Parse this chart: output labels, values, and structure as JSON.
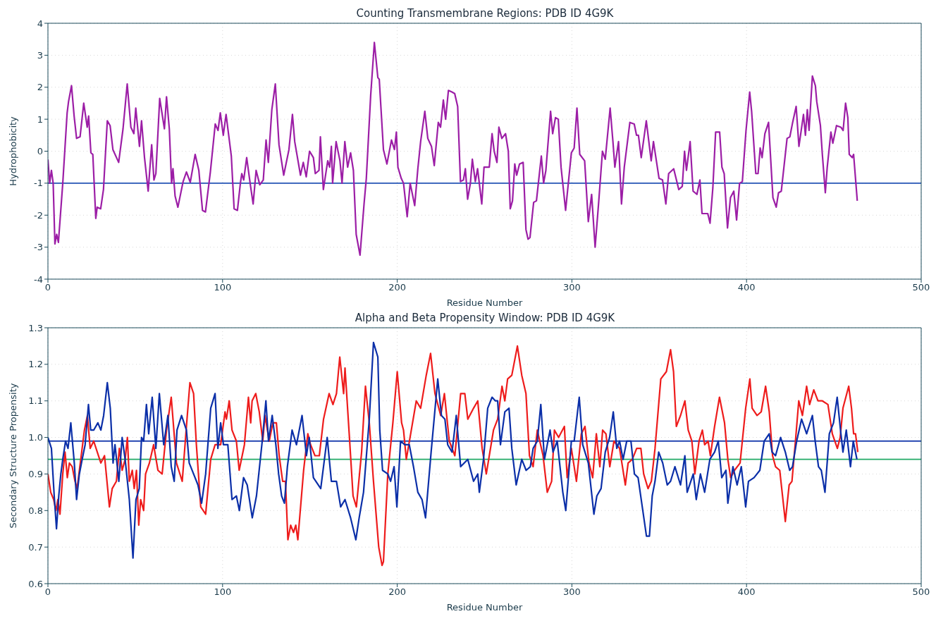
{
  "chart_data": [
    {
      "type": "line",
      "title": "Counting Transmembrane Regions: PDB ID 4G9K",
      "xlabel": "Residue Number",
      "ylabel": "Hydrophobicity",
      "xlim": [
        0,
        500
      ],
      "xticks": [
        0,
        100,
        200,
        300,
        400,
        500
      ],
      "ylim": [
        -4,
        4
      ],
      "yticks": [
        -4,
        -3,
        -2,
        -1,
        0,
        1,
        2,
        3,
        4
      ],
      "grid": true,
      "ref_lines": [
        {
          "axis": "y",
          "value": -1,
          "color": "#2455b5"
        }
      ],
      "series": [
        {
          "color": "#9c1ea6",
          "x": [
            0,
            1,
            2,
            3,
            4,
            5,
            6,
            8.5,
            11,
            11.8,
            13.5,
            15,
            16.4,
            18.4,
            20.5,
            22.5,
            23.3,
            24.6,
            25.7,
            27.4,
            28.2,
            30.2,
            31.8,
            34,
            35.6,
            37.2,
            40.5,
            43,
            45.4,
            47.5,
            49.2,
            50.3,
            52.4,
            53.6,
            55.3,
            57.4,
            59.4,
            60.7,
            61.8,
            64,
            66.7,
            67.9,
            69.5,
            70.8,
            71.6,
            72.8,
            74.4,
            77.4,
            79.3,
            81.5,
            84.3,
            86.4,
            88.5,
            90.2,
            93,
            95.8,
            97.4,
            98.7,
            100.4,
            102,
            105,
            106.6,
            108.5,
            110.2,
            111,
            112.1,
            113.8,
            115.9,
            117.5,
            119.2,
            121.3,
            123.3,
            124.9,
            126.2,
            128.2,
            130.2,
            132.3,
            135,
            138,
            140,
            141.3,
            144.6,
            146.2,
            147.9,
            149.8,
            152,
            153.1,
            155.2,
            156,
            157.7,
            160.2,
            161.3,
            162.3,
            163,
            165,
            167.2,
            168.4,
            170,
            171.6,
            173.3,
            174.9,
            176.5,
            178.7,
            181,
            182.3,
            184.8,
            186.9,
            188.9,
            189.7,
            192.1,
            194.1,
            196.7,
            198.4,
            199.5,
            200.4,
            202.3,
            203.6,
            205.7,
            207.4,
            210,
            211.8,
            213.4,
            215.8,
            217.5,
            219.6,
            221.2,
            223.5,
            224.8,
            226.4,
            227.7,
            229.3,
            231.3,
            232.9,
            234.6,
            236.2,
            237.9,
            239,
            240.3,
            241.9,
            243,
            244.7,
            246,
            248.4,
            249.7,
            252.7,
            254.3,
            255.5,
            257.1,
            258.2,
            259.9,
            262,
            263.6,
            264.7,
            266,
            267.3,
            268.4,
            270,
            272.1,
            273.7,
            274.9,
            276,
            278.1,
            279.7,
            282.5,
            283.8,
            285.1,
            287.8,
            289,
            290.6,
            292.2,
            293.8,
            296.4,
            299.7,
            301.3,
            302.9,
            304.5,
            307.3,
            309.4,
            311.3,
            313.3,
            315.4,
            317.5,
            319.1,
            321.9,
            323.5,
            324.6,
            326.7,
            328.4,
            330,
            333.2,
            335.7,
            337,
            338.1,
            339.7,
            342.6,
            345.4,
            346.7,
            349.9,
            351.9,
            353.8,
            355.4,
            358.3,
            361.2,
            363.2,
            364.5,
            365.6,
            367.7,
            369.4,
            371.6,
            373.3,
            374.5,
            377.8,
            379.1,
            380.7,
            382.3,
            384.6,
            385.9,
            387.2,
            389.1,
            390.8,
            392.7,
            394.3,
            396,
            397.6,
            399.7,
            401.8,
            402.9,
            405.3,
            406.6,
            407.8,
            408.9,
            410.5,
            412.6,
            415.1,
            417,
            418.3,
            419.9,
            423.2,
            424.8,
            426.4,
            428.4,
            430,
            432.6,
            433.7,
            434.8,
            435.8,
            437.7,
            439.4,
            440.2,
            442.3,
            443.4,
            445.1,
            446.2,
            448.3,
            449.4,
            451.5,
            454,
            455.3,
            456.7,
            458,
            458.8,
            460.5,
            461.3,
            463.4
          ],
          "values": [
            -0.26,
            -1.0,
            -0.6,
            -1.0,
            -2.9,
            -2.6,
            -2.85,
            -1.0,
            1.2,
            1.55,
            2.05,
            1.1,
            0.4,
            0.45,
            1.5,
            0.75,
            1.1,
            -0.05,
            -0.1,
            -2.1,
            -1.75,
            -1.8,
            -1.2,
            0.95,
            0.8,
            0.05,
            -0.35,
            0.7,
            2.1,
            0.75,
            0.55,
            1.35,
            0.15,
            0.95,
            -0.2,
            -1.25,
            0.2,
            -0.9,
            -0.7,
            1.65,
            0.7,
            1.7,
            0.7,
            -1.0,
            -0.55,
            -1.4,
            -1.75,
            -0.95,
            -0.65,
            -0.97,
            -0.1,
            -0.6,
            -1.85,
            -1.9,
            -0.65,
            0.85,
            0.65,
            1.2,
            0.5,
            1.15,
            -0.15,
            -1.8,
            -1.85,
            -1.0,
            -0.7,
            -0.9,
            -0.2,
            -1.05,
            -1.65,
            -0.6,
            -1.05,
            -0.9,
            0.35,
            -0.35,
            1.3,
            2.1,
            0.2,
            -0.75,
            0.05,
            1.15,
            0.3,
            -0.75,
            -0.35,
            -0.8,
            0.0,
            -0.2,
            -0.7,
            -0.6,
            0.45,
            -1.2,
            -0.3,
            -0.5,
            0.15,
            -1.0,
            0.3,
            -0.3,
            -1.0,
            0.3,
            -0.5,
            -0.05,
            -0.6,
            -2.6,
            -3.25,
            -1.65,
            -0.85,
            1.75,
            3.4,
            2.3,
            2.25,
            0.05,
            -0.4,
            0.35,
            0.05,
            0.6,
            -0.5,
            -0.85,
            -1.0,
            -2.05,
            -1.0,
            -1.7,
            -0.55,
            0.3,
            1.25,
            0.4,
            0.15,
            -0.45,
            0.9,
            0.75,
            1.6,
            1.0,
            1.9,
            1.85,
            1.8,
            1.4,
            -0.95,
            -0.9,
            -0.55,
            -1.5,
            -1.0,
            -0.25,
            -0.95,
            -0.55,
            -1.65,
            -0.5,
            -0.5,
            0.55,
            0.0,
            -0.35,
            0.75,
            0.4,
            0.55,
            0.0,
            -1.8,
            -1.55,
            -0.4,
            -0.75,
            -0.4,
            -0.35,
            -2.45,
            -2.75,
            -2.7,
            -1.6,
            -1.55,
            -0.15,
            -1.0,
            -0.6,
            1.25,
            0.55,
            1.05,
            1.0,
            -0.5,
            -1.85,
            -0.05,
            0.1,
            1.35,
            -0.1,
            -0.3,
            -2.2,
            -1.35,
            -3.0,
            -1.55,
            0.0,
            -0.25,
            1.35,
            0.3,
            -0.5,
            0.3,
            -1.65,
            -0.5,
            0.9,
            0.85,
            0.5,
            0.5,
            -0.2,
            0.95,
            -0.3,
            0.3,
            -0.85,
            -0.9,
            -1.65,
            -0.7,
            -0.55,
            -1.2,
            -1.1,
            0.0,
            -0.6,
            0.3,
            -1.25,
            -1.35,
            -0.9,
            -1.95,
            -1.95,
            -2.25,
            -1.15,
            0.6,
            0.6,
            -0.5,
            -0.7,
            -2.4,
            -1.45,
            -1.25,
            -2.15,
            -1.0,
            -0.95,
            0.65,
            1.85,
            1.25,
            -0.7,
            -0.7,
            0.1,
            -0.2,
            0.55,
            0.9,
            -1.45,
            -1.75,
            -1.3,
            -1.25,
            0.4,
            0.45,
            0.9,
            1.4,
            0.15,
            1.15,
            0.5,
            1.3,
            0.65,
            2.35,
            2.05,
            1.55,
            0.8,
            -0.1,
            -1.3,
            -0.5,
            0.6,
            0.25,
            0.8,
            0.75,
            0.65,
            1.5,
            1.05,
            -0.1,
            -0.2,
            -0.1,
            -1.55
          ]
        }
      ]
    },
    {
      "type": "line",
      "title": "Alpha and Beta Propensity Window: PDB ID 4G9K",
      "xlabel": "Residue Number",
      "ylabel": "Secondary Structure Propensity",
      "xlim": [
        0,
        500
      ],
      "xticks": [
        0,
        100,
        200,
        300,
        400,
        500
      ],
      "ylim": [
        0.6,
        1.3
      ],
      "yticks": [
        0.6,
        0.7,
        0.8,
        0.9,
        {
          "value": 1,
          "label": "1.0"
        },
        1.1,
        1.2,
        1.3
      ],
      "grid": true,
      "ref_lines": [
        {
          "axis": "y",
          "value": 0.99,
          "color": "#2244b0"
        },
        {
          "axis": "y",
          "value": 0.94,
          "color": "#22aa66"
        }
      ],
      "series": [
        {
          "color": "#ee1c1c",
          "x": [
            0,
            1.6,
            3.3,
            4.6,
            5.7,
            6.9,
            8.5,
            9.8,
            11.1,
            12.3,
            13.9,
            15.5,
            16.7,
            18.8,
            20.9,
            22.6,
            24.2,
            26.2,
            30.3,
            32.4,
            35.2,
            36.8,
            39.2,
            40.9,
            42.5,
            44.2,
            45.5,
            46.6,
            48.3,
            49.4,
            50.7,
            52,
            53.1,
            54.8,
            55.9,
            58.1,
            60.5,
            63,
            65.4,
            67.9,
            70.6,
            73.6,
            76.9,
            79.3,
            81.3,
            83.4,
            85,
            87.5,
            90.3,
            93.2,
            95.7,
            98.9,
            101.4,
            102.2,
            103.8,
            105.4,
            107.9,
            109.5,
            112.5,
            114.8,
            116.1,
            116.9,
            119,
            121,
            123,
            124.3,
            126.7,
            128.8,
            130.8,
            132.4,
            134.4,
            136,
            137.4,
            139,
            140.6,
            141.9,
            143.1,
            146.4,
            148.8,
            150.4,
            152.9,
            155.4,
            157.8,
            161,
            163.2,
            165.2,
            167.1,
            169.3,
            170.1,
            172.5,
            174.7,
            176.6,
            179.6,
            181.8,
            184,
            186.4,
            189.4,
            191.3,
            192.1,
            194.6,
            197.5,
            200,
            202.5,
            203.6,
            205.2,
            207.7,
            210.9,
            213.4,
            216.6,
            219.1,
            221.6,
            224.9,
            227,
            229.8,
            233,
            236.3,
            238.7,
            240.4,
            243.7,
            246.1,
            248.6,
            251,
            255.1,
            257.5,
            260,
            261.6,
            263.2,
            265.6,
            268.8,
            271.3,
            273.7,
            275.7,
            277.8,
            280.2,
            283.5,
            285.9,
            288.4,
            290,
            292.4,
            295.7,
            297.3,
            299.7,
            302.6,
            305.4,
            307.5,
            309.8,
            311.9,
            314,
            316,
            317.6,
            319.5,
            321.7,
            324.1,
            327.3,
            330.6,
            332.2,
            334.6,
            337.1,
            339.5,
            341.1,
            343.6,
            345.5,
            347.6,
            350.9,
            354.1,
            356.5,
            358.2,
            359.8,
            362.2,
            364.7,
            366.6,
            368.7,
            370.4,
            372.8,
            374.7,
            376,
            378,
            379.3,
            381.7,
            384.5,
            387.4,
            389.3,
            390.9,
            393.1,
            396.3,
            399.5,
            401.9,
            403.2,
            406,
            408.4,
            410.9,
            413,
            414.9,
            416.6,
            419,
            422.2,
            424.4,
            426,
            428,
            429.9,
            432,
            434.4,
            436.1,
            438.5,
            440.9,
            443.4,
            446.6,
            449.1,
            452,
            453.6,
            455.2,
            458.5,
            460.1,
            461.3,
            462.4,
            463.7
          ],
          "values": [
            0.9,
            0.85,
            0.83,
            0.8,
            0.83,
            0.79,
            0.9,
            0.96,
            0.89,
            0.93,
            0.92,
            0.88,
            0.86,
            0.94,
            1.02,
            1.06,
            0.97,
            0.99,
            0.93,
            0.95,
            0.81,
            0.86,
            0.88,
            0.97,
            0.91,
            0.94,
            1.0,
            0.88,
            0.91,
            0.86,
            0.91,
            0.76,
            0.83,
            0.8,
            0.9,
            0.93,
            0.98,
            0.91,
            0.9,
            1.02,
            1.11,
            0.93,
            0.88,
            1.03,
            1.15,
            1.12,
            0.98,
            0.81,
            0.79,
            0.94,
            0.98,
            0.98,
            1.07,
            1.05,
            1.1,
            1.02,
            0.99,
            0.91,
            0.98,
            1.11,
            1.04,
            1.1,
            1.12,
            1.07,
            0.99,
            1.06,
            0.99,
            1.04,
            1.04,
            0.95,
            0.88,
            0.88,
            0.72,
            0.76,
            0.74,
            0.76,
            0.72,
            0.91,
            1.01,
            0.98,
            0.95,
            0.95,
            1.05,
            1.12,
            1.09,
            1.12,
            1.22,
            1.12,
            1.19,
            1.01,
            0.84,
            0.81,
            0.96,
            1.14,
            1.04,
            0.88,
            0.7,
            0.65,
            0.66,
            0.9,
            1.04,
            1.18,
            1.04,
            1.02,
            0.94,
            1.01,
            1.1,
            1.08,
            1.17,
            1.23,
            1.12,
            1.06,
            1.12,
            0.99,
            0.95,
            1.12,
            1.12,
            1.05,
            1.08,
            1.1,
            0.97,
            0.9,
            1.02,
            1.05,
            1.14,
            1.1,
            1.16,
            1.17,
            1.25,
            1.17,
            1.12,
            0.95,
            0.92,
            1.02,
            0.95,
            0.85,
            0.88,
            1.02,
            1.0,
            1.03,
            0.89,
            0.97,
            0.88,
            1.01,
            1.03,
            0.93,
            0.89,
            1.01,
            0.92,
            1.02,
            1.01,
            0.92,
            0.99,
            0.97,
            0.87,
            0.93,
            0.94,
            0.97,
            0.97,
            0.9,
            0.86,
            0.88,
            0.97,
            1.16,
            1.18,
            1.24,
            1.18,
            1.03,
            1.06,
            1.1,
            1.02,
            0.99,
            0.9,
            0.99,
            1.02,
            0.98,
            0.99,
            0.95,
            1.03,
            1.11,
            1.04,
            0.94,
            0.89,
            0.91,
            0.93,
            1.08,
            1.16,
            1.08,
            1.06,
            1.07,
            1.14,
            1.07,
            0.95,
            0.92,
            0.91,
            0.77,
            0.87,
            0.88,
            0.99,
            1.1,
            1.06,
            1.14,
            1.09,
            1.13,
            1.1,
            1.1,
            1.09,
            1.01,
            0.97,
            1.0,
            1.08,
            1.14,
            1.08,
            1.01,
            1.01,
            0.96
          ]
        },
        {
          "color": "#0b2fa8",
          "x": [
            0,
            2,
            3.6,
            4.9,
            6.2,
            7.4,
            8.5,
            10.1,
            11.5,
            13.1,
            15.1,
            16.4,
            18,
            19.6,
            21.3,
            23.2,
            24.5,
            26.2,
            28.6,
            30.3,
            31.9,
            34,
            35.7,
            37.3,
            38.4,
            40.6,
            42.5,
            44.2,
            46.6,
            48.7,
            50.4,
            52.3,
            53.6,
            54.8,
            56.4,
            57.7,
            59.7,
            61.8,
            63.8,
            66.3,
            68.7,
            70.6,
            72.3,
            73.9,
            76.5,
            79.3,
            80.9,
            83.4,
            85.9,
            88,
            90.3,
            93.2,
            95.7,
            97.3,
            98.9,
            100.5,
            103,
            105.4,
            107.9,
            109.6,
            112,
            114.1,
            117,
            119.4,
            122.7,
            124.8,
            126.3,
            128.4,
            130.5,
            132.1,
            133.8,
            135.4,
            137.1,
            139.8,
            142.3,
            145.5,
            148,
            149.6,
            152,
            156.2,
            159.9,
            162.3,
            165.2,
            167.6,
            170.1,
            173.3,
            176.3,
            178.2,
            180.7,
            184,
            186.4,
            188.9,
            190,
            191.6,
            194.6,
            196.2,
            198.2,
            199.8,
            201.9,
            204.3,
            206.9,
            209.3,
            211.8,
            214.2,
            216.2,
            219.4,
            223.2,
            225.3,
            227.3,
            228.9,
            231.4,
            233.8,
            236.3,
            240.4,
            243.7,
            246.1,
            247,
            249.4,
            251.8,
            254.3,
            256.2,
            257.5,
            259.1,
            261.6,
            264,
            265.6,
            268.1,
            271.3,
            273.8,
            276.2,
            277.8,
            280.2,
            282.2,
            284.3,
            287.5,
            289.2,
            291.6,
            294.8,
            296.5,
            299.7,
            301.3,
            304.2,
            306.2,
            309.4,
            312.6,
            314.3,
            316.7,
            319.1,
            321.6,
            323.7,
            325.7,
            327.3,
            329.3,
            331.4,
            333.8,
            335.8,
            337.9,
            340.3,
            342.7,
            344.4,
            346,
            347.6,
            349.7,
            352,
            354.6,
            356.5,
            359,
            362.2,
            364.7,
            366,
            369.5,
            371.2,
            373.6,
            376,
            379,
            381.7,
            383.8,
            385.8,
            388.2,
            389.3,
            392.2,
            394.6,
            397,
            399.5,
            401.1,
            404.3,
            407.6,
            410.1,
            413,
            414.6,
            416.6,
            419.5,
            422.2,
            424.7,
            426.3,
            428.7,
            431.5,
            434.4,
            437.7,
            439.3,
            441.2,
            442.8,
            444.9,
            447.4,
            449.8,
            451.9,
            453.8,
            455.2,
            457.1,
            459.5,
            461.1,
            463.2
          ],
          "values": [
            1.0,
            0.97,
            0.84,
            0.75,
            0.84,
            0.9,
            0.94,
            0.99,
            0.97,
            1.04,
            0.93,
            0.83,
            0.9,
            0.94,
            0.98,
            1.09,
            1.02,
            1.02,
            1.04,
            1.02,
            1.06,
            1.15,
            1.08,
            0.93,
            0.98,
            0.88,
            1.0,
            0.94,
            0.83,
            0.67,
            0.83,
            0.86,
            1.0,
            0.99,
            1.09,
            1.01,
            1.11,
            0.97,
            1.12,
            0.98,
            1.06,
            0.92,
            0.88,
            1.02,
            1.06,
            1.02,
            0.93,
            0.9,
            0.87,
            0.82,
            0.9,
            1.08,
            1.12,
            0.97,
            1.04,
            0.98,
            0.98,
            0.83,
            0.84,
            0.8,
            0.89,
            0.87,
            0.78,
            0.84,
            0.99,
            1.1,
            0.99,
            1.06,
            0.98,
            0.9,
            0.84,
            0.82,
            0.92,
            1.02,
            0.98,
            1.06,
            0.95,
            1.0,
            0.89,
            0.86,
            1.0,
            0.88,
            0.88,
            0.81,
            0.83,
            0.78,
            0.72,
            0.78,
            0.85,
            1.05,
            1.26,
            1.22,
            1.02,
            0.91,
            0.9,
            0.88,
            0.92,
            0.81,
            0.99,
            0.98,
            0.98,
            0.92,
            0.85,
            0.83,
            0.78,
            0.96,
            1.16,
            1.06,
            1.05,
            0.98,
            0.96,
            1.06,
            0.92,
            0.94,
            0.88,
            0.9,
            0.85,
            0.94,
            1.08,
            1.11,
            1.1,
            1.1,
            0.98,
            1.07,
            1.08,
            0.97,
            0.87,
            0.94,
            0.91,
            0.92,
            0.97,
            0.99,
            1.09,
            0.94,
            1.02,
            0.96,
            0.99,
            0.85,
            0.8,
            0.99,
            0.99,
            1.11,
            0.98,
            0.93,
            0.79,
            0.84,
            0.86,
            0.96,
            1.0,
            1.07,
            0.97,
            0.99,
            0.94,
            0.99,
            0.99,
            0.9,
            0.89,
            0.81,
            0.73,
            0.73,
            0.84,
            0.88,
            0.96,
            0.93,
            0.87,
            0.88,
            0.92,
            0.87,
            0.95,
            0.85,
            0.9,
            0.83,
            0.9,
            0.85,
            0.94,
            0.96,
            0.99,
            0.89,
            0.91,
            0.82,
            0.92,
            0.87,
            0.92,
            0.81,
            0.88,
            0.89,
            0.91,
            0.99,
            1.01,
            0.96,
            0.95,
            1.0,
            0.96,
            0.91,
            0.92,
            0.99,
            1.05,
            1.01,
            1.06,
            0.99,
            0.92,
            0.91,
            0.85,
            1.01,
            1.04,
            1.11,
            1.02,
            0.96,
            1.02,
            0.92,
            0.99,
            0.94
          ]
        }
      ]
    }
  ]
}
